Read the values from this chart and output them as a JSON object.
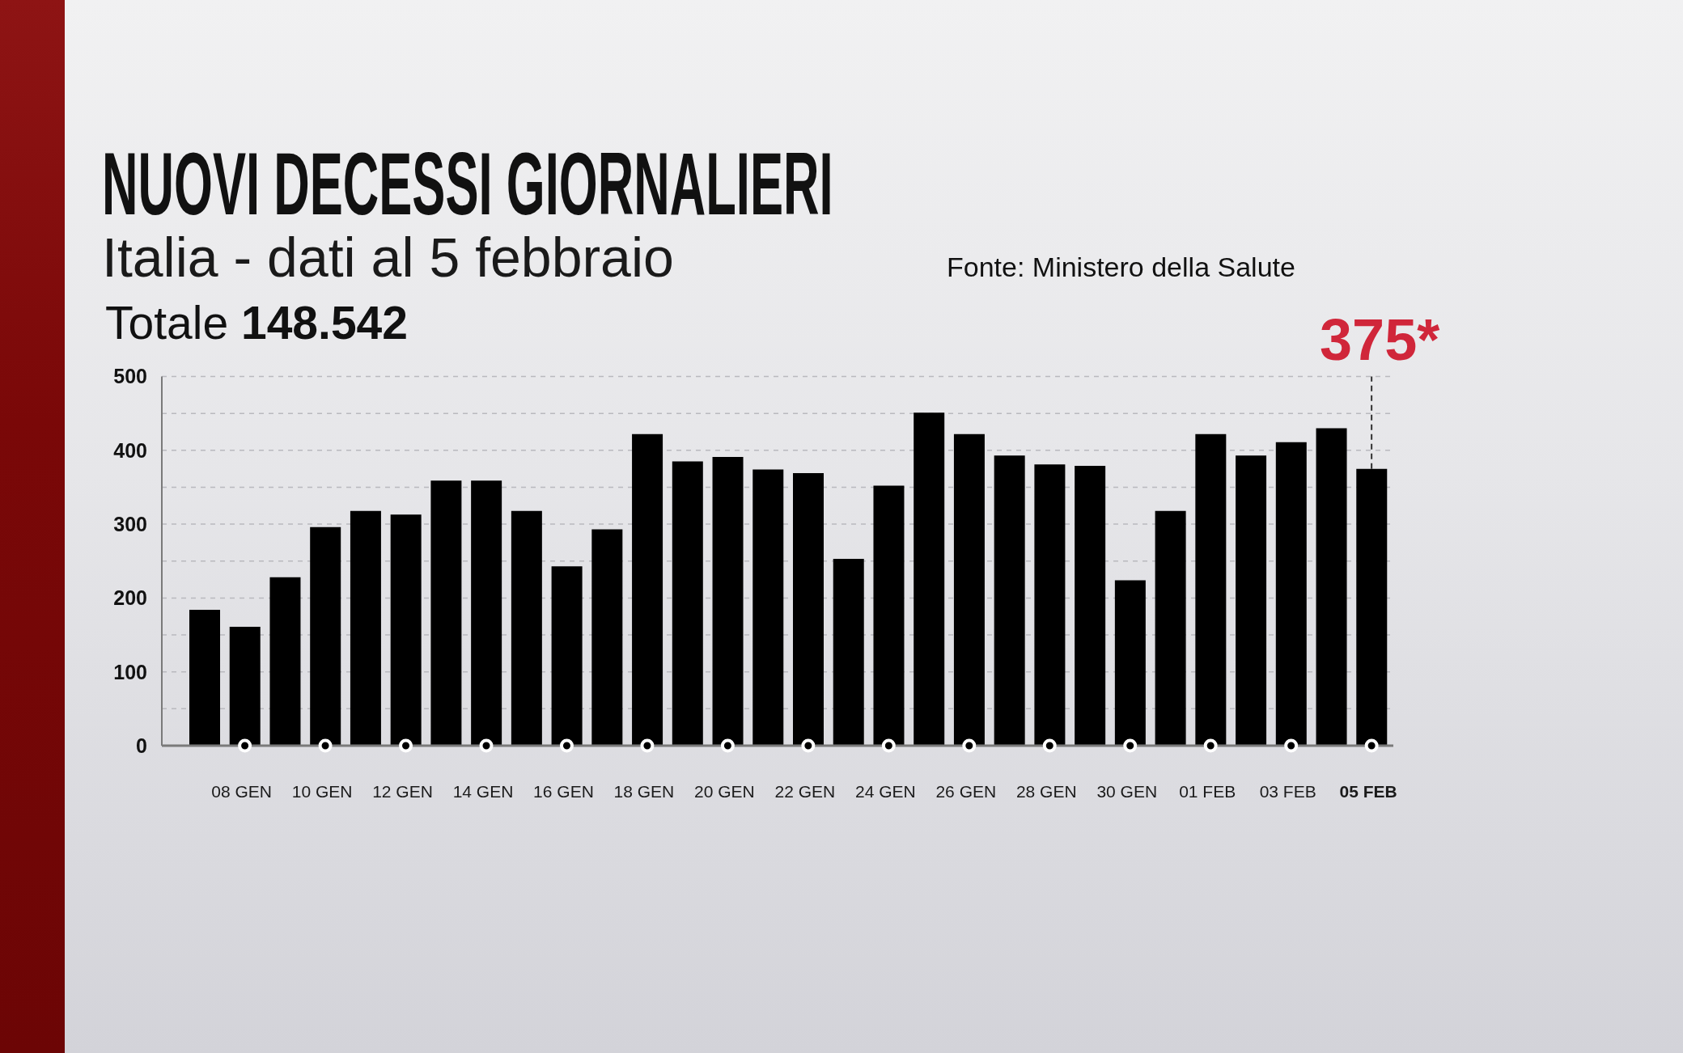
{
  "chart_data": {
    "type": "bar",
    "title": "NUOVI DECESSI GIORNALIERI",
    "subtitle": "Italia - dati al 5 febbraio",
    "categories": [
      null,
      "08 GEN",
      null,
      "10 GEN",
      null,
      "12 GEN",
      null,
      "14 GEN",
      null,
      "16 GEN",
      null,
      "18 GEN",
      null,
      "20 GEN",
      null,
      "22 GEN",
      null,
      "24 GEN",
      null,
      "26 GEN",
      null,
      "28 GEN",
      null,
      "30 GEN",
      null,
      "01 FEB",
      null,
      "03 FEB",
      null,
      "05 FEB"
    ],
    "values": [
      184,
      161,
      228,
      296,
      318,
      313,
      359,
      359,
      318,
      243,
      293,
      422,
      385,
      391,
      374,
      369,
      253,
      352,
      451,
      422,
      393,
      381,
      379,
      224,
      318,
      422,
      393,
      411,
      430,
      375
    ],
    "color": "#000000",
    "ylim": [
      0,
      500
    ],
    "yticks": [
      0,
      {
        "value": 50,
        "label": null
      },
      100,
      {
        "value": 150,
        "label": null
      },
      200,
      {
        "value": 250,
        "label": null
      },
      300,
      {
        "value": 350,
        "label": null
      },
      400,
      {
        "value": 450,
        "label": null
      },
      500
    ],
    "grid": "y",
    "annotations": [
      "Totale 148.542",
      "Fonte: Ministero della Salute",
      {
        "text": "375*",
        "x": "05 FEB",
        "y": 375
      }
    ]
  }
}
